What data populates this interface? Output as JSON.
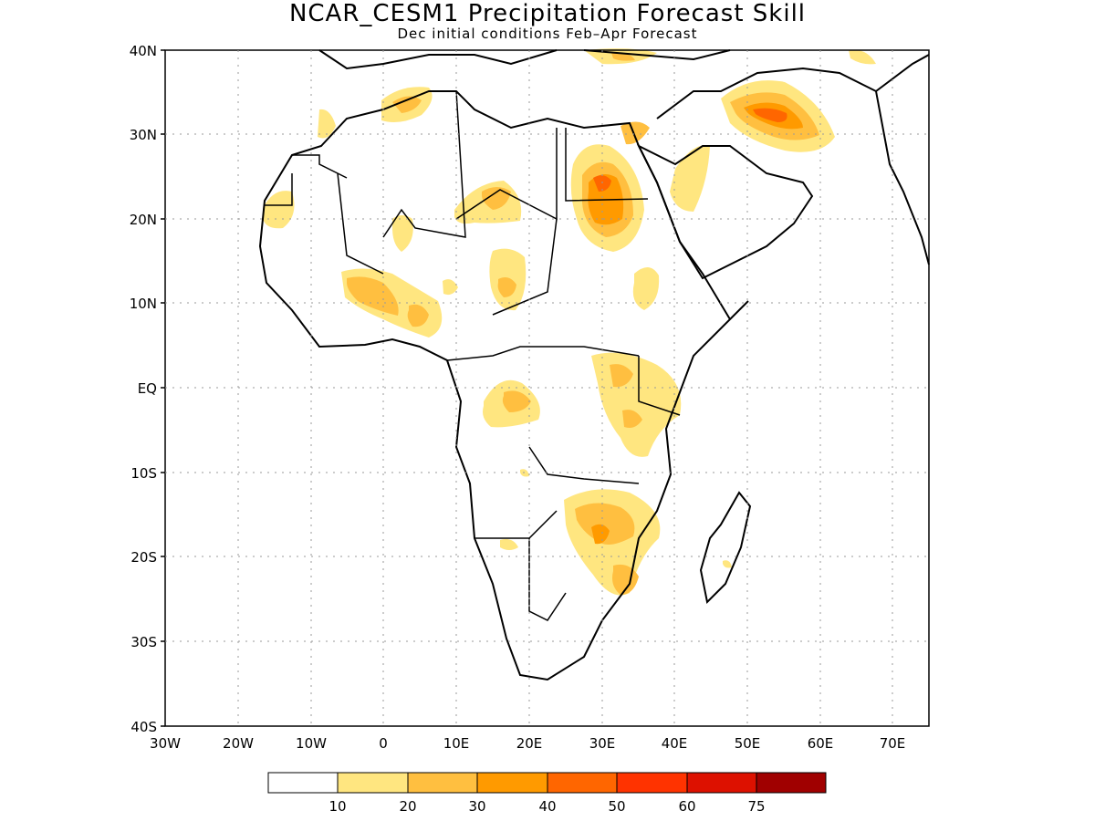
{
  "title": "NCAR_CESM1 Precipitation Forecast Skill",
  "subtitle": "Dec initial conditions  Feb–Apr Forecast",
  "map": {
    "lat_labels": [
      "40N",
      "30N",
      "20N",
      "10N",
      "EQ",
      "10S",
      "20S",
      "30S",
      "40S"
    ],
    "lon_labels": [
      "30W",
      "20W",
      "10W",
      "0",
      "10E",
      "20E",
      "30E",
      "40E",
      "50E",
      "60E",
      "70E"
    ],
    "lon_range": [
      -30,
      75
    ],
    "lat_range": [
      -40,
      40
    ],
    "gridlines": "dotted"
  },
  "legend": {
    "labels": [
      "10",
      "20",
      "30",
      "40",
      "50",
      "60",
      "75"
    ],
    "colors": [
      "#ffffff",
      "#ffe680",
      "#ffbf40",
      "#ff9a00",
      "#ff6600",
      "#ff3300",
      "#dd1100",
      "#a00000"
    ]
  }
}
